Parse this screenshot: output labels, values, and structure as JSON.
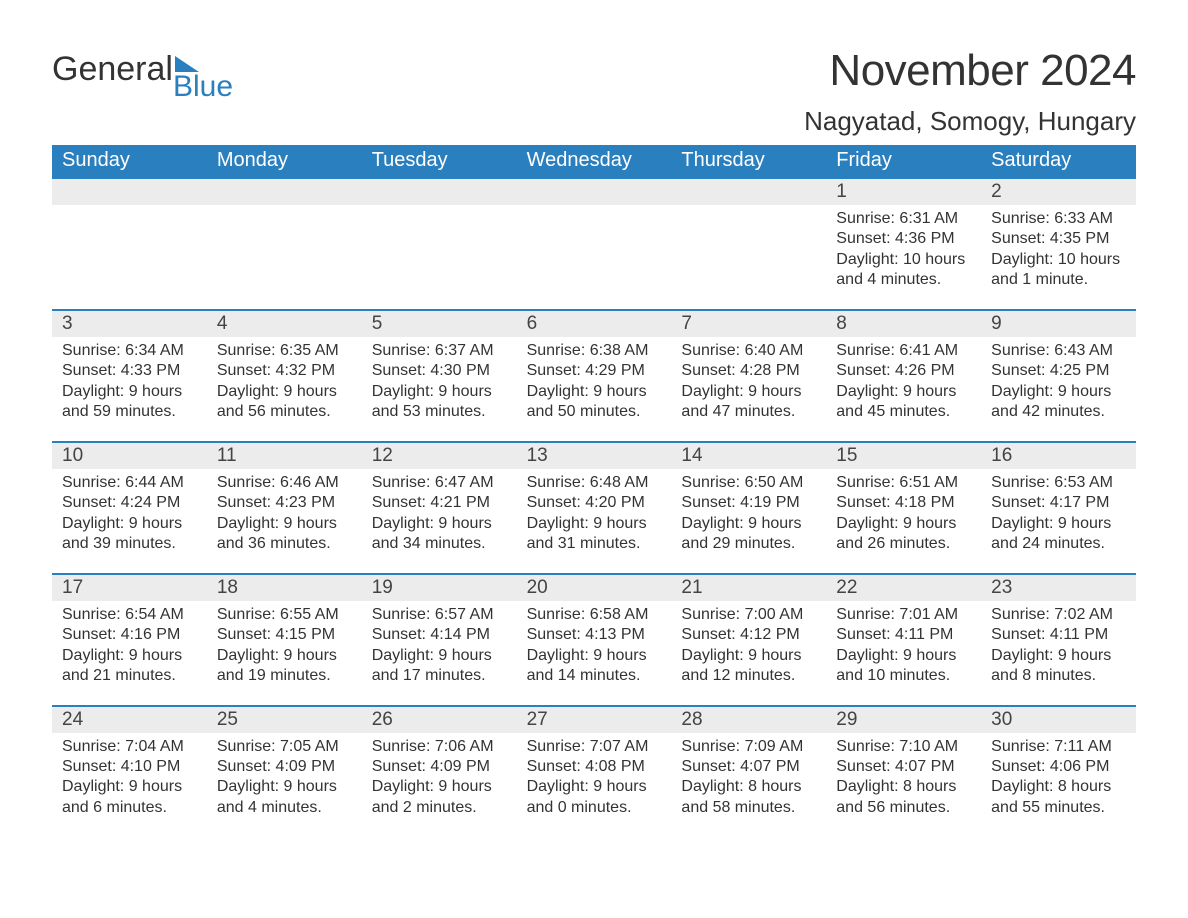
{
  "logo": {
    "word1": "General",
    "word2": "Blue"
  },
  "header": {
    "month_title": "November 2024",
    "location": "Nagyatad, Somogy, Hungary"
  },
  "colors": {
    "brand_blue": "#2a7fbf",
    "band_gray": "#ececec",
    "text": "#333333",
    "background": "#ffffff"
  },
  "weekday_labels": [
    "Sunday",
    "Monday",
    "Tuesday",
    "Wednesday",
    "Thursday",
    "Friday",
    "Saturday"
  ],
  "weeks": [
    {
      "days": [
        {
          "num": "",
          "sunrise": "",
          "sunset": "",
          "daylight1": "",
          "daylight2": ""
        },
        {
          "num": "",
          "sunrise": "",
          "sunset": "",
          "daylight1": "",
          "daylight2": ""
        },
        {
          "num": "",
          "sunrise": "",
          "sunset": "",
          "daylight1": "",
          "daylight2": ""
        },
        {
          "num": "",
          "sunrise": "",
          "sunset": "",
          "daylight1": "",
          "daylight2": ""
        },
        {
          "num": "",
          "sunrise": "",
          "sunset": "",
          "daylight1": "",
          "daylight2": ""
        },
        {
          "num": "1",
          "sunrise": "Sunrise: 6:31 AM",
          "sunset": "Sunset: 4:36 PM",
          "daylight1": "Daylight: 10 hours",
          "daylight2": "and 4 minutes."
        },
        {
          "num": "2",
          "sunrise": "Sunrise: 6:33 AM",
          "sunset": "Sunset: 4:35 PM",
          "daylight1": "Daylight: 10 hours",
          "daylight2": "and 1 minute."
        }
      ]
    },
    {
      "days": [
        {
          "num": "3",
          "sunrise": "Sunrise: 6:34 AM",
          "sunset": "Sunset: 4:33 PM",
          "daylight1": "Daylight: 9 hours",
          "daylight2": "and 59 minutes."
        },
        {
          "num": "4",
          "sunrise": "Sunrise: 6:35 AM",
          "sunset": "Sunset: 4:32 PM",
          "daylight1": "Daylight: 9 hours",
          "daylight2": "and 56 minutes."
        },
        {
          "num": "5",
          "sunrise": "Sunrise: 6:37 AM",
          "sunset": "Sunset: 4:30 PM",
          "daylight1": "Daylight: 9 hours",
          "daylight2": "and 53 minutes."
        },
        {
          "num": "6",
          "sunrise": "Sunrise: 6:38 AM",
          "sunset": "Sunset: 4:29 PM",
          "daylight1": "Daylight: 9 hours",
          "daylight2": "and 50 minutes."
        },
        {
          "num": "7",
          "sunrise": "Sunrise: 6:40 AM",
          "sunset": "Sunset: 4:28 PM",
          "daylight1": "Daylight: 9 hours",
          "daylight2": "and 47 minutes."
        },
        {
          "num": "8",
          "sunrise": "Sunrise: 6:41 AM",
          "sunset": "Sunset: 4:26 PM",
          "daylight1": "Daylight: 9 hours",
          "daylight2": "and 45 minutes."
        },
        {
          "num": "9",
          "sunrise": "Sunrise: 6:43 AM",
          "sunset": "Sunset: 4:25 PM",
          "daylight1": "Daylight: 9 hours",
          "daylight2": "and 42 minutes."
        }
      ]
    },
    {
      "days": [
        {
          "num": "10",
          "sunrise": "Sunrise: 6:44 AM",
          "sunset": "Sunset: 4:24 PM",
          "daylight1": "Daylight: 9 hours",
          "daylight2": "and 39 minutes."
        },
        {
          "num": "11",
          "sunrise": "Sunrise: 6:46 AM",
          "sunset": "Sunset: 4:23 PM",
          "daylight1": "Daylight: 9 hours",
          "daylight2": "and 36 minutes."
        },
        {
          "num": "12",
          "sunrise": "Sunrise: 6:47 AM",
          "sunset": "Sunset: 4:21 PM",
          "daylight1": "Daylight: 9 hours",
          "daylight2": "and 34 minutes."
        },
        {
          "num": "13",
          "sunrise": "Sunrise: 6:48 AM",
          "sunset": "Sunset: 4:20 PM",
          "daylight1": "Daylight: 9 hours",
          "daylight2": "and 31 minutes."
        },
        {
          "num": "14",
          "sunrise": "Sunrise: 6:50 AM",
          "sunset": "Sunset: 4:19 PM",
          "daylight1": "Daylight: 9 hours",
          "daylight2": "and 29 minutes."
        },
        {
          "num": "15",
          "sunrise": "Sunrise: 6:51 AM",
          "sunset": "Sunset: 4:18 PM",
          "daylight1": "Daylight: 9 hours",
          "daylight2": "and 26 minutes."
        },
        {
          "num": "16",
          "sunrise": "Sunrise: 6:53 AM",
          "sunset": "Sunset: 4:17 PM",
          "daylight1": "Daylight: 9 hours",
          "daylight2": "and 24 minutes."
        }
      ]
    },
    {
      "days": [
        {
          "num": "17",
          "sunrise": "Sunrise: 6:54 AM",
          "sunset": "Sunset: 4:16 PM",
          "daylight1": "Daylight: 9 hours",
          "daylight2": "and 21 minutes."
        },
        {
          "num": "18",
          "sunrise": "Sunrise: 6:55 AM",
          "sunset": "Sunset: 4:15 PM",
          "daylight1": "Daylight: 9 hours",
          "daylight2": "and 19 minutes."
        },
        {
          "num": "19",
          "sunrise": "Sunrise: 6:57 AM",
          "sunset": "Sunset: 4:14 PM",
          "daylight1": "Daylight: 9 hours",
          "daylight2": "and 17 minutes."
        },
        {
          "num": "20",
          "sunrise": "Sunrise: 6:58 AM",
          "sunset": "Sunset: 4:13 PM",
          "daylight1": "Daylight: 9 hours",
          "daylight2": "and 14 minutes."
        },
        {
          "num": "21",
          "sunrise": "Sunrise: 7:00 AM",
          "sunset": "Sunset: 4:12 PM",
          "daylight1": "Daylight: 9 hours",
          "daylight2": "and 12 minutes."
        },
        {
          "num": "22",
          "sunrise": "Sunrise: 7:01 AM",
          "sunset": "Sunset: 4:11 PM",
          "daylight1": "Daylight: 9 hours",
          "daylight2": "and 10 minutes."
        },
        {
          "num": "23",
          "sunrise": "Sunrise: 7:02 AM",
          "sunset": "Sunset: 4:11 PM",
          "daylight1": "Daylight: 9 hours",
          "daylight2": "and 8 minutes."
        }
      ]
    },
    {
      "days": [
        {
          "num": "24",
          "sunrise": "Sunrise: 7:04 AM",
          "sunset": "Sunset: 4:10 PM",
          "daylight1": "Daylight: 9 hours",
          "daylight2": "and 6 minutes."
        },
        {
          "num": "25",
          "sunrise": "Sunrise: 7:05 AM",
          "sunset": "Sunset: 4:09 PM",
          "daylight1": "Daylight: 9 hours",
          "daylight2": "and 4 minutes."
        },
        {
          "num": "26",
          "sunrise": "Sunrise: 7:06 AM",
          "sunset": "Sunset: 4:09 PM",
          "daylight1": "Daylight: 9 hours",
          "daylight2": "and 2 minutes."
        },
        {
          "num": "27",
          "sunrise": "Sunrise: 7:07 AM",
          "sunset": "Sunset: 4:08 PM",
          "daylight1": "Daylight: 9 hours",
          "daylight2": "and 0 minutes."
        },
        {
          "num": "28",
          "sunrise": "Sunrise: 7:09 AM",
          "sunset": "Sunset: 4:07 PM",
          "daylight1": "Daylight: 8 hours",
          "daylight2": "and 58 minutes."
        },
        {
          "num": "29",
          "sunrise": "Sunrise: 7:10 AM",
          "sunset": "Sunset: 4:07 PM",
          "daylight1": "Daylight: 8 hours",
          "daylight2": "and 56 minutes."
        },
        {
          "num": "30",
          "sunrise": "Sunrise: 7:11 AM",
          "sunset": "Sunset: 4:06 PM",
          "daylight1": "Daylight: 8 hours",
          "daylight2": "and 55 minutes."
        }
      ]
    }
  ]
}
